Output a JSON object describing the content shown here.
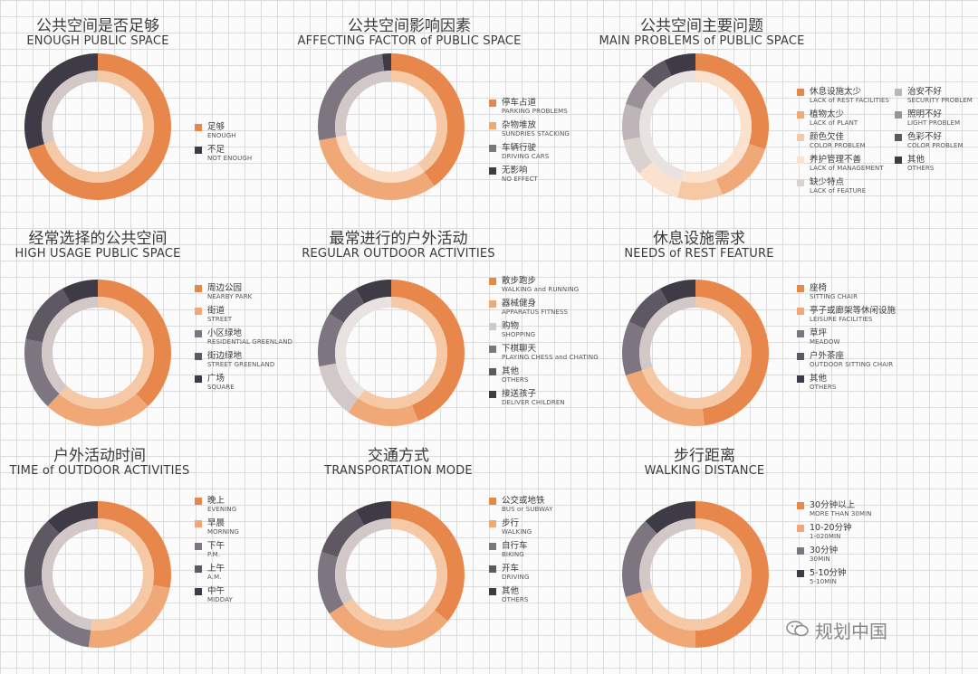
{
  "colors": [
    "#e8874b",
    "#f1a877",
    "#f6c9a6",
    "#d2c8c8",
    "#7d7580",
    "#3e3b47",
    "#ece7e4"
  ],
  "chart_data": [
    {
      "type": "pie",
      "title": "公共空间是否足够",
      "subtitle": "ENOUGH PUBLIC SPACE",
      "legend": [
        {
          "cn": "足够",
          "en": "ENOUGH",
          "color": "#e8874b"
        },
        {
          "cn": "不足",
          "en": "NOT ENOUGH",
          "color": "#3e3b47"
        }
      ],
      "slices": [
        {
          "value": 70,
          "color": "#e8874b"
        },
        {
          "value": 30,
          "color": "#3e3b47"
        }
      ],
      "inner_slices": [
        {
          "value": 70,
          "color": "#f6c9a6"
        },
        {
          "value": 30,
          "color": "#d2c8c8"
        }
      ]
    },
    {
      "type": "pie",
      "title": "公共空间影响因素",
      "subtitle": "AFFECTING FACTOR of PUBLIC SPACE",
      "legend": [
        {
          "cn": "停车占道",
          "en": "PARKING PROBLEMS",
          "color": "#e8874b"
        },
        {
          "cn": "杂物堆放",
          "en": "SUNDRIES STACKING",
          "color": "#f1a877"
        },
        {
          "cn": "车辆行驶",
          "en": "DRIVING CARS",
          "color": "#7d7580"
        },
        {
          "cn": "无影响",
          "en": "NO EFFECT",
          "color": "#3e3b47"
        }
      ],
      "slices": [
        {
          "value": 40,
          "color": "#e8874b"
        },
        {
          "value": 32,
          "color": "#f1a877"
        },
        {
          "value": 26,
          "color": "#7d7580"
        },
        {
          "value": 2,
          "color": "#3e3b47"
        }
      ],
      "inner_slices": [
        {
          "value": 40,
          "color": "#f6c9a6"
        },
        {
          "value": 32,
          "color": "#fbdcc4"
        },
        {
          "value": 28,
          "color": "#d2c8c8"
        }
      ]
    },
    {
      "type": "pie",
      "title": "公共空间主要问题",
      "subtitle": "MAIN PROBLEMS of PUBLIC SPACE",
      "legend": [
        {
          "cn": "休息设施太少",
          "en": "LACK of REST FACILITIES",
          "color": "#e8874b"
        },
        {
          "cn": "植物太少",
          "en": "LACK of PLANT",
          "color": "#f1a877"
        },
        {
          "cn": "颜色欠佳",
          "en": "COLOR PROBLEM",
          "color": "#f6c9a6"
        },
        {
          "cn": "养护管理不善",
          "en": "LACK of MANAGEMENT",
          "color": "#fbe2cf"
        },
        {
          "cn": "缺少特点",
          "en": "LACK of FEATURE",
          "color": "#d9d2cf"
        },
        {
          "cn": "治安不好",
          "en": "SECURITY PROBLEM",
          "color": "#bdb5b8"
        },
        {
          "cn": "照明不好",
          "en": "LIGHT PROBLEM",
          "color": "#9a9298"
        },
        {
          "cn": "色彩不好",
          "en": "COLOR PROBLEM",
          "color": "#5e5862"
        },
        {
          "cn": "其他",
          "en": "OTHERS",
          "color": "#3e3b47"
        }
      ],
      "slices": [
        {
          "value": 30,
          "color": "#e8874b"
        },
        {
          "value": 14,
          "color": "#f1a877"
        },
        {
          "value": 10,
          "color": "#f6c9a6"
        },
        {
          "value": 10,
          "color": "#fbe2cf"
        },
        {
          "value": 8,
          "color": "#d9d2cf"
        },
        {
          "value": 8,
          "color": "#bdb5b8"
        },
        {
          "value": 7,
          "color": "#9a9298"
        },
        {
          "value": 6,
          "color": "#5e5862"
        },
        {
          "value": 7,
          "color": "#3e3b47"
        }
      ],
      "inner_slices": [
        {
          "value": 54,
          "color": "#fbe2cf"
        },
        {
          "value": 46,
          "color": "#e8e2e0"
        }
      ]
    },
    {
      "type": "pie",
      "title": "经常选择的公共空间",
      "subtitle": "HIGH USAGE PUBLIC SPACE",
      "legend": [
        {
          "cn": "周边公园",
          "en": "NEARBY PARK",
          "color": "#e8874b"
        },
        {
          "cn": "街道",
          "en": "STREET",
          "color": "#f1a877"
        },
        {
          "cn": "小区绿地",
          "en": "RESIDENTIAL GREENLAND",
          "color": "#7d7580"
        },
        {
          "cn": "街边绿地",
          "en": "STREET GREENLAND",
          "color": "#5e5862"
        },
        {
          "cn": "广场",
          "en": "SQUARE",
          "color": "#3e3b47"
        }
      ],
      "slices": [
        {
          "value": 38,
          "color": "#e8874b"
        },
        {
          "value": 24,
          "color": "#f1a877"
        },
        {
          "value": 16,
          "color": "#7d7580"
        },
        {
          "value": 14,
          "color": "#5e5862"
        },
        {
          "value": 8,
          "color": "#3e3b47"
        }
      ],
      "inner_slices": [
        {
          "value": 62,
          "color": "#f6c9a6"
        },
        {
          "value": 38,
          "color": "#d2c8c8"
        }
      ]
    },
    {
      "type": "pie",
      "title": "最常进行的户外活动",
      "subtitle": "REGULAR OUTDOOR ACTIVITIES",
      "legend": [
        {
          "cn": "散步跑步",
          "en": "WALKING and RUNNING",
          "color": "#e8874b"
        },
        {
          "cn": "器械健身",
          "en": "APPARATUS FITNESS",
          "color": "#f1a877"
        },
        {
          "cn": "购物",
          "en": "SHOPPING",
          "color": "#d2c8c8"
        },
        {
          "cn": "下棋聊天",
          "en": "PLAYING CHESS and CHATING",
          "color": "#7d7580"
        },
        {
          "cn": "其他",
          "en": "OTHERS",
          "color": "#5e5862"
        },
        {
          "cn": "接送孩子",
          "en": "DELIVER CHILDREN",
          "color": "#3e3b47"
        }
      ],
      "slices": [
        {
          "value": 44,
          "color": "#e8874b"
        },
        {
          "value": 16,
          "color": "#f1a877"
        },
        {
          "value": 12,
          "color": "#d2c8c8"
        },
        {
          "value": 12,
          "color": "#7d7580"
        },
        {
          "value": 8,
          "color": "#5e5862"
        },
        {
          "value": 8,
          "color": "#3e3b47"
        }
      ],
      "inner_slices": [
        {
          "value": 60,
          "color": "#f6c9a6"
        },
        {
          "value": 40,
          "color": "#e8e2e0"
        }
      ]
    },
    {
      "type": "pie",
      "title": "休息设施需求",
      "subtitle": "NEEDS of REST FEATURE",
      "legend": [
        {
          "cn": "座椅",
          "en": "SITTING CHAIR",
          "color": "#e8874b"
        },
        {
          "cn": "亭子或廊架等休闲设施",
          "en": "LEISURE FACILITIES",
          "color": "#f1a877"
        },
        {
          "cn": "草坪",
          "en": "MEADOW",
          "color": "#7d7580"
        },
        {
          "cn": "户外茶座",
          "en": "OUTDOOR SITTING CHAIR",
          "color": "#5e5862"
        },
        {
          "cn": "其他",
          "en": "OTHERS",
          "color": "#3e3b47"
        }
      ],
      "slices": [
        {
          "value": 48,
          "color": "#e8874b"
        },
        {
          "value": 22,
          "color": "#f1a877"
        },
        {
          "value": 12,
          "color": "#7d7580"
        },
        {
          "value": 10,
          "color": "#5e5862"
        },
        {
          "value": 8,
          "color": "#3e3b47"
        }
      ],
      "inner_slices": [
        {
          "value": 70,
          "color": "#f6c9a6"
        },
        {
          "value": 30,
          "color": "#d2c8c8"
        }
      ]
    },
    {
      "type": "pie",
      "title": "户外活动时间",
      "subtitle": "TIME of OUTDOOR ACTIVITIES",
      "legend": [
        {
          "cn": "晚上",
          "en": "EVENING",
          "color": "#e8874b"
        },
        {
          "cn": "早晨",
          "en": "MORNING",
          "color": "#f1a877"
        },
        {
          "cn": "下午",
          "en": "P.M.",
          "color": "#7d7580"
        },
        {
          "cn": "上午",
          "en": "A.M.",
          "color": "#5e5862"
        },
        {
          "cn": "中午",
          "en": "MIDDAY",
          "color": "#3e3b47"
        }
      ],
      "slices": [
        {
          "value": 28,
          "color": "#e8874b"
        },
        {
          "value": 24,
          "color": "#f1a877"
        },
        {
          "value": 20,
          "color": "#7d7580"
        },
        {
          "value": 16,
          "color": "#5e5862"
        },
        {
          "value": 12,
          "color": "#3e3b47"
        }
      ],
      "inner_slices": [
        {
          "value": 52,
          "color": "#f6c9a6"
        },
        {
          "value": 48,
          "color": "#d2c8c8"
        }
      ]
    },
    {
      "type": "pie",
      "title": "交通方式",
      "subtitle": "TRANSPORTATION MODE",
      "legend": [
        {
          "cn": "公交或地铁",
          "en": "BUS or SUBWAY",
          "color": "#e8874b"
        },
        {
          "cn": "步行",
          "en": "WALKING",
          "color": "#f1a877"
        },
        {
          "cn": "自行车",
          "en": "BIKING",
          "color": "#7d7580"
        },
        {
          "cn": "开车",
          "en": "DRIVING",
          "color": "#5e5862"
        },
        {
          "cn": "其他",
          "en": "OTHERS",
          "color": "#3e3b47"
        }
      ],
      "slices": [
        {
          "value": 36,
          "color": "#e8874b"
        },
        {
          "value": 30,
          "color": "#f1a877"
        },
        {
          "value": 14,
          "color": "#7d7580"
        },
        {
          "value": 12,
          "color": "#5e5862"
        },
        {
          "value": 8,
          "color": "#3e3b47"
        }
      ],
      "inner_slices": [
        {
          "value": 66,
          "color": "#f6c9a6"
        },
        {
          "value": 34,
          "color": "#d2c8c8"
        }
      ]
    },
    {
      "type": "pie",
      "title": "步行距离",
      "subtitle": "WALKING DISTANCE",
      "legend": [
        {
          "cn": "30分钟以上",
          "en": "MORE THAN 30MIN",
          "color": "#e8874b"
        },
        {
          "cn": "10-20分钟",
          "en": "1-020MIN",
          "color": "#f1a877"
        },
        {
          "cn": "30分钟",
          "en": "30MIN",
          "color": "#7d7580"
        },
        {
          "cn": "5-10分钟",
          "en": "5-10MIN",
          "color": "#3e3b47"
        }
      ],
      "slices": [
        {
          "value": 50,
          "color": "#e8874b"
        },
        {
          "value": 20,
          "color": "#f1a877"
        },
        {
          "value": 18,
          "color": "#7d7580"
        },
        {
          "value": 12,
          "color": "#3e3b47"
        }
      ],
      "inner_slices": [
        {
          "value": 70,
          "color": "#f6c9a6"
        },
        {
          "value": 30,
          "color": "#d2c8c8"
        }
      ]
    }
  ],
  "watermark": "规划中国",
  "watermark_icon": "wechat-icon"
}
